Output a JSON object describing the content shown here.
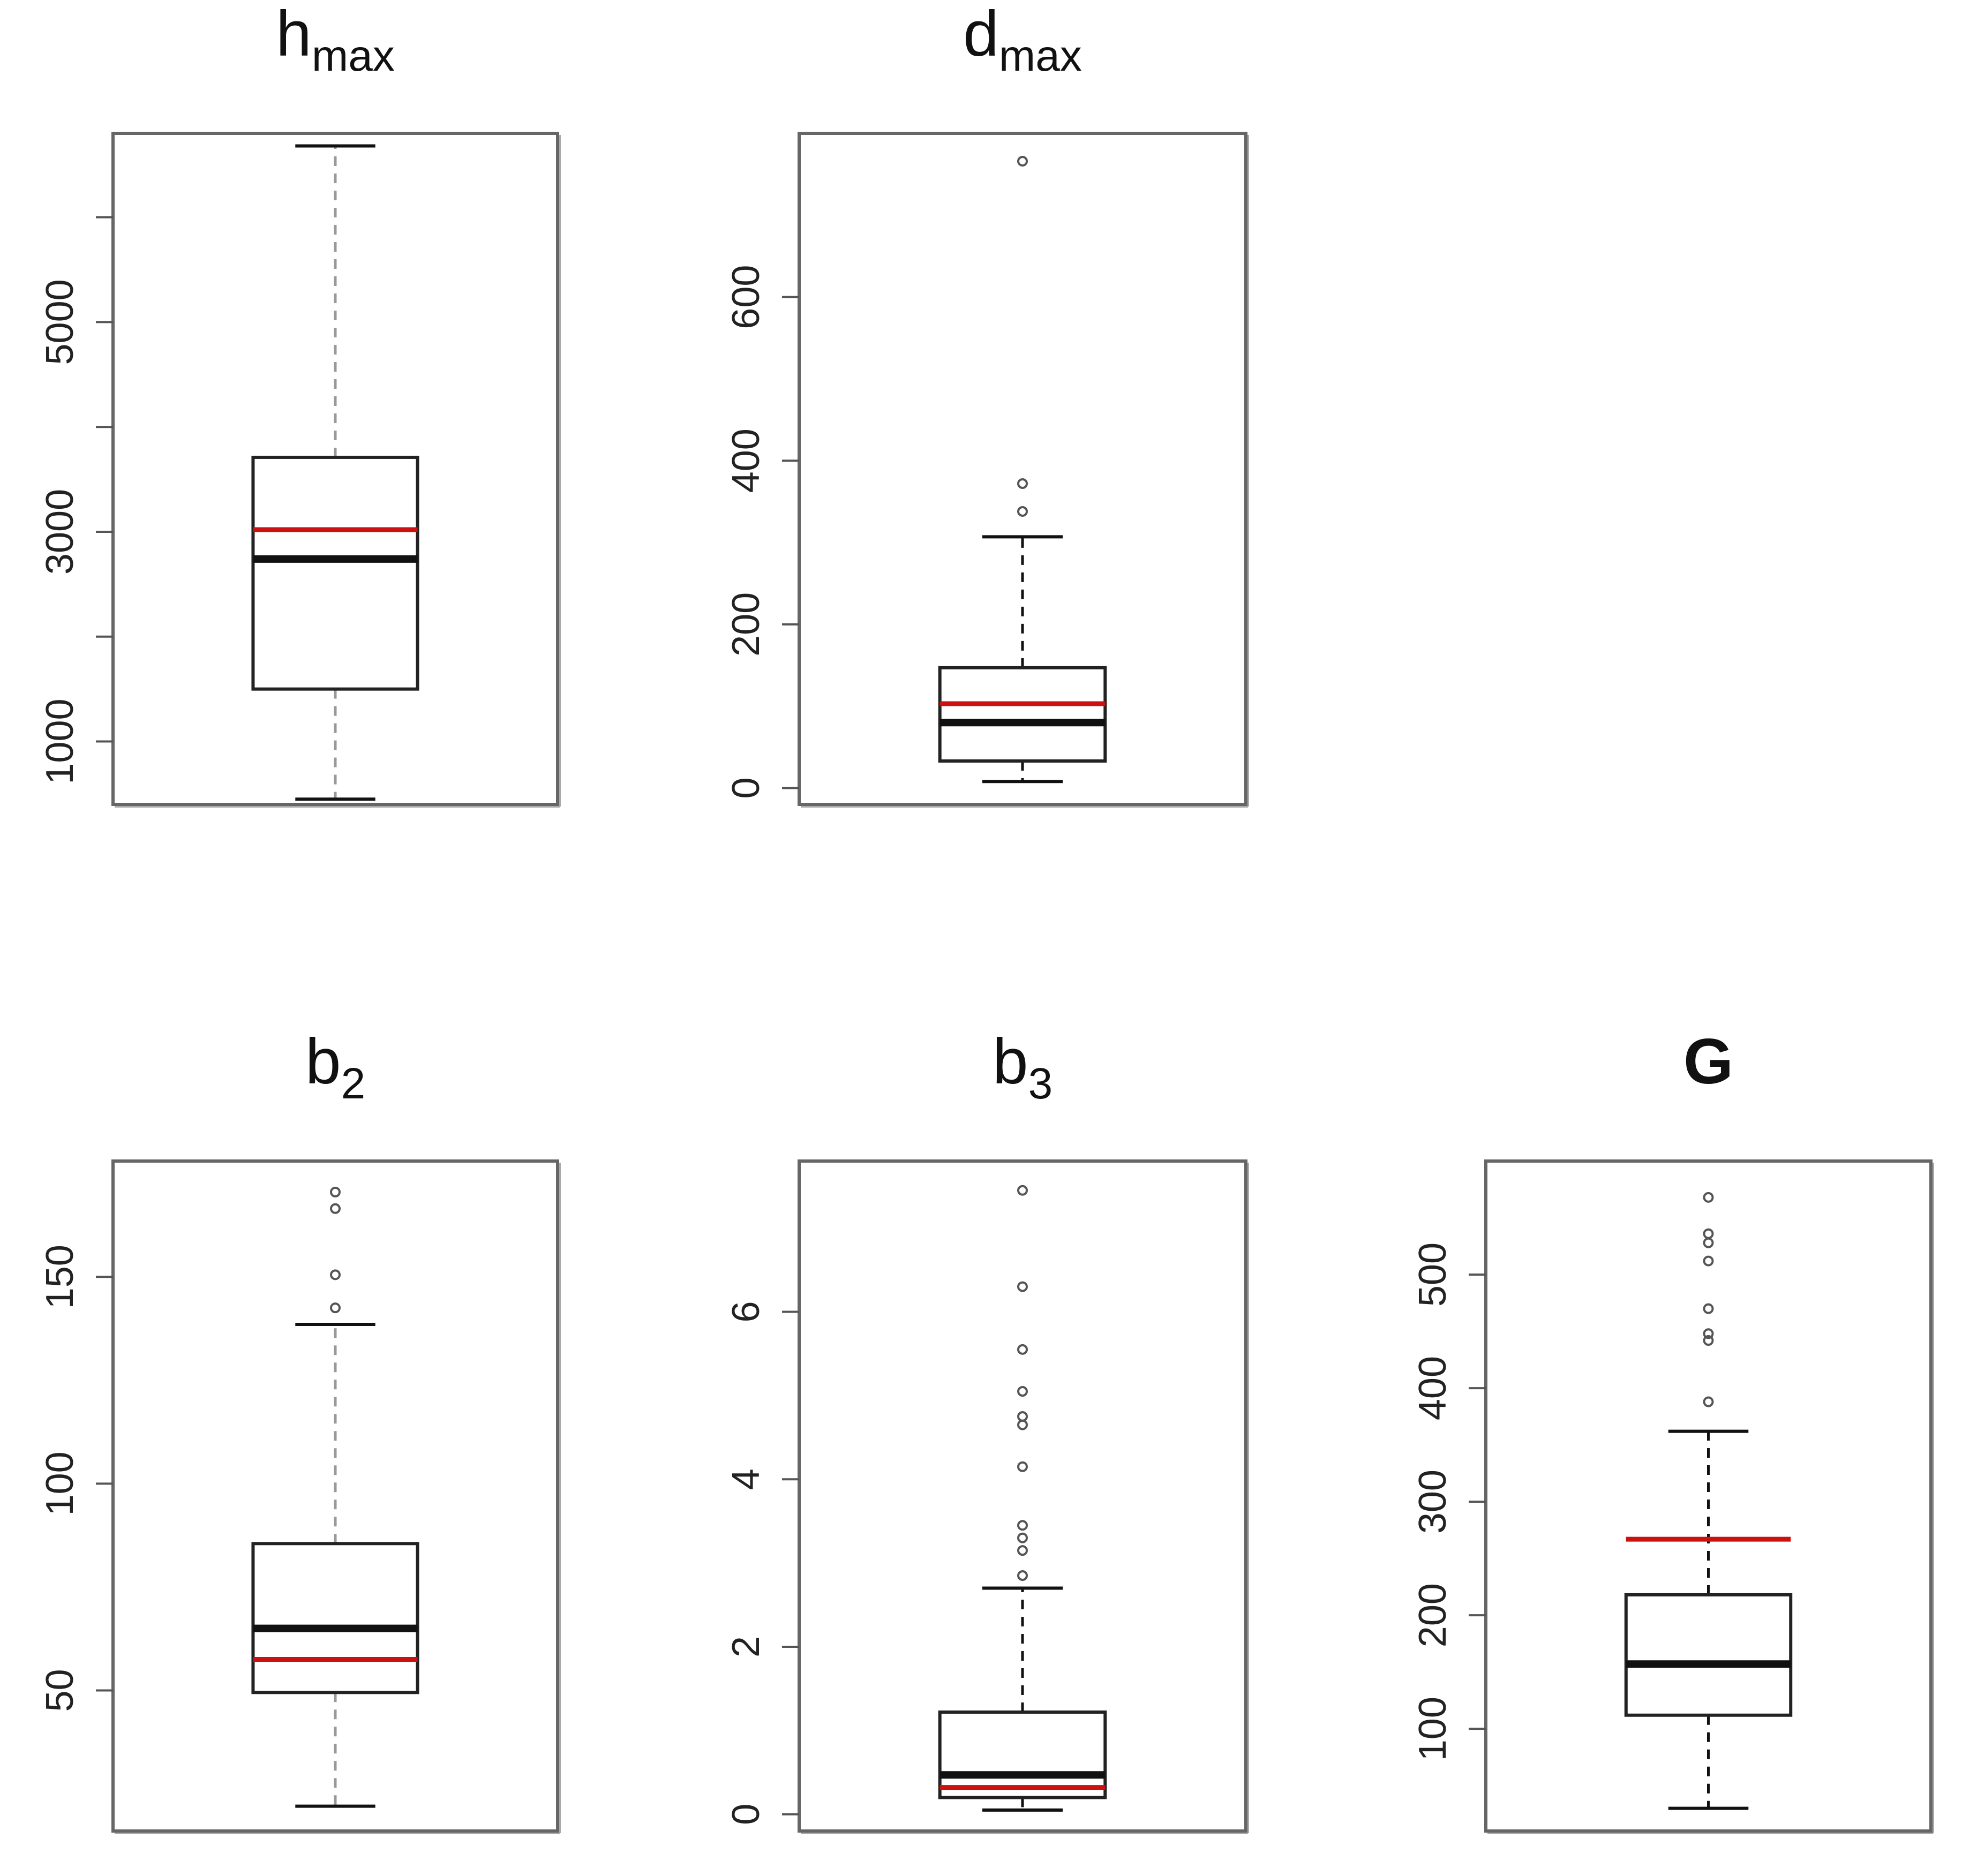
{
  "chart_data": [
    {
      "type": "boxplot",
      "title": "hmax",
      "title_main": "h",
      "title_sub": "max",
      "title_bold": false,
      "ylim": [
        400,
        6800
      ],
      "ticks": [
        1000,
        3000,
        5000
      ],
      "minor_ticks": [
        2000,
        4000,
        6000
      ],
      "whisker_low": 450,
      "q1": 1500,
      "median": 2740,
      "mean": 3020,
      "q3": 3710,
      "whisker_high": 6680,
      "outliers": [],
      "whisker_color": "#999999",
      "median_color": "#111111",
      "mean_color": "#cc1111"
    },
    {
      "type": "boxplot",
      "title": "dmax",
      "title_main": "d",
      "title_sub": "max",
      "title_bold": false,
      "ylim": [
        -20,
        800
      ],
      "ticks": [
        0,
        200,
        400,
        600
      ],
      "minor_ticks": [],
      "whisker_low": 8,
      "q1": 33,
      "median": 80,
      "mean": 103,
      "q3": 147,
      "whisker_high": 307,
      "outliers": [
        338,
        372,
        766
      ],
      "whisker_color": "#111111",
      "median_color": "#111111",
      "mean_color": "#cc1111"
    },
    {
      "type": "boxplot",
      "title": "b2",
      "title_main": "b",
      "title_sub": "2",
      "title_bold": false,
      "ylim": [
        16,
        178
      ],
      "ticks": [
        50,
        100,
        150
      ],
      "minor_ticks": [],
      "whisker_low": 22,
      "q1": 49.5,
      "median": 65,
      "mean": 57.5,
      "q3": 85.5,
      "whisker_high": 138.5,
      "outliers": [
        142.5,
        150.5,
        166.5,
        170.5
      ],
      "whisker_color": "#999999",
      "median_color": "#111111",
      "mean_color": "#cc1111"
    },
    {
      "type": "boxplot",
      "title": "b3",
      "title_main": "b",
      "title_sub": "3",
      "title_bold": false,
      "ylim": [
        -0.2,
        7.8
      ],
      "ticks": [
        0,
        2,
        4,
        6
      ],
      "minor_ticks": [],
      "whisker_low": 0.05,
      "q1": 0.2,
      "median": 0.47,
      "mean": 0.32,
      "q3": 1.22,
      "whisker_high": 2.7,
      "outliers": [
        2.85,
        3.15,
        3.3,
        3.45,
        4.15,
        4.65,
        4.75,
        5.05,
        5.55,
        6.3,
        7.45
      ],
      "whisker_color": "#111111",
      "median_color": "#111111",
      "mean_color": "#cc1111"
    },
    {
      "type": "boxplot",
      "title": "G",
      "title_main": "G",
      "title_sub": "",
      "title_bold": true,
      "ylim": [
        10,
        600
      ],
      "ticks": [
        100,
        200,
        300,
        400,
        500
      ],
      "minor_ticks": [],
      "whisker_low": 30,
      "q1": 112,
      "median": 157,
      "mean": 267,
      "q3": 218,
      "whisker_high": 362,
      "outliers": [
        388,
        442,
        448,
        470,
        512,
        528,
        536,
        568
      ],
      "whisker_color": "#111111",
      "median_color": "#111111",
      "mean_color": "#cc1111"
    }
  ]
}
